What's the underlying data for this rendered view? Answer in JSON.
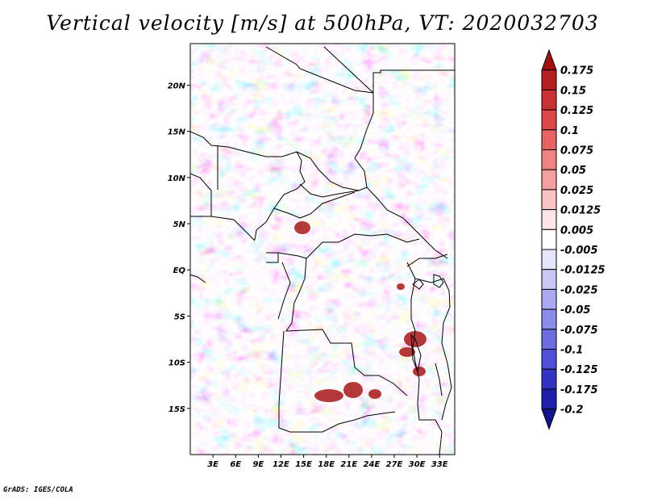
{
  "title": "Vertical velocity [m/s] at 500hPa, VT: 2020032703",
  "credit": "GrADS: IGES/COLA",
  "map": {
    "lat_labels": [
      "20N",
      "15N",
      "10N",
      "5N",
      "EQ",
      "5S",
      "10S",
      "15S"
    ],
    "lat_values": [
      20,
      15,
      10,
      5,
      0,
      -5,
      -10,
      -15
    ],
    "lon_labels": [
      "3E",
      "6E",
      "9E",
      "12E",
      "15E",
      "18E",
      "21E",
      "24E",
      "27E",
      "30E",
      "33E"
    ],
    "lon_values": [
      3,
      6,
      9,
      12,
      15,
      18,
      21,
      24,
      27,
      30,
      33
    ],
    "lat_range": [
      -20,
      24.5
    ],
    "lon_range": [
      0,
      35
    ]
  },
  "colorbar": {
    "levels": [
      "0.175",
      "0.15",
      "0.125",
      "0.1",
      "0.075",
      "0.05",
      "0.025",
      "0.0125",
      "0.005",
      "-0.005",
      "-0.0125",
      "-0.025",
      "-0.05",
      "-0.075",
      "-0.1",
      "-0.125",
      "-0.175",
      "-0.2"
    ],
    "colors": [
      "#a01010",
      "#b42020",
      "#c83232",
      "#dc4646",
      "#e66464",
      "#f08282",
      "#f5a0a0",
      "#fac3c3",
      "#fde6e6",
      "#ffffff",
      "#e6e6fa",
      "#c8c8f5",
      "#aaaaf0",
      "#8c8ceb",
      "#6e6ee1",
      "#5050d7",
      "#3232c3",
      "#1e1eaa",
      "#14148c"
    ]
  }
}
